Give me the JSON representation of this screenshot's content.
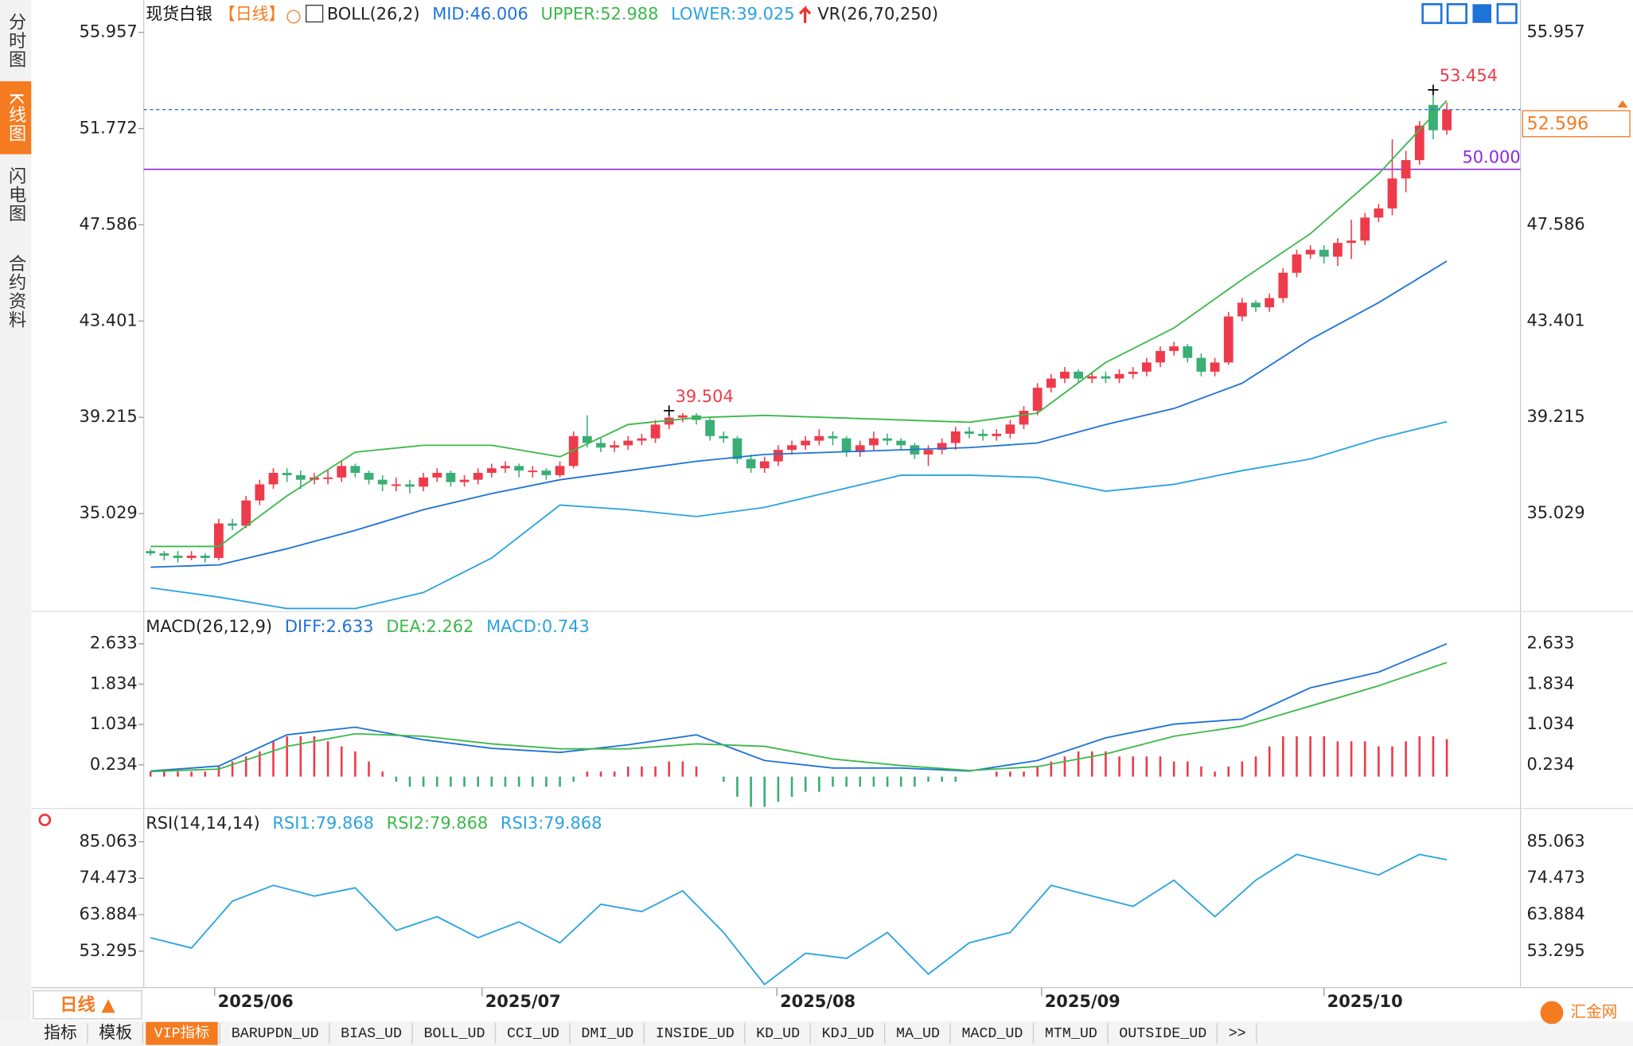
{
  "tabs": [
    "分时图",
    "K线图",
    "闪电图",
    "合约资料"
  ],
  "period_selector": "日线 ▲",
  "bottom_tabs": [
    "指标",
    "模板",
    "VIP指标",
    "BARUPDN_UD",
    "BIAS_UD",
    "BOLL_UD",
    "CCI_UD",
    "DMI_UD",
    "INSIDE_UD",
    "KD_UD",
    "KDJ_UD",
    "MA_UD",
    "MACD_UD",
    "MTM_UD",
    "OUTSIDE_UD",
    ">>"
  ],
  "logo": "汇金网",
  "chart_data": [
    {
      "type": "candlestick",
      "title": "现货白银",
      "period": "【日线】",
      "up_color": "#ee3b4b",
      "down_color": "#3aae74",
      "xlim": [
        -0.5,
        100.4
      ],
      "xticks": [
        {
          "value": 4.7,
          "label": "2025/06"
        },
        {
          "value": 24.3,
          "label": "2025/07"
        },
        {
          "value": 45.9,
          "label": "2025/08"
        },
        {
          "value": 65.3,
          "label": "2025/09"
        },
        {
          "value": 86,
          "label": "2025/10"
        }
      ],
      "ylim": [
        30.86,
        57.36
      ],
      "yticks": [
        55.957,
        51.772,
        47.586,
        43.401,
        39.215,
        35.029
      ],
      "candles": [
        [
          33.4,
          33.5,
          33.2,
          33.3
        ],
        [
          33.3,
          33.4,
          33.0,
          33.2
        ],
        [
          33.2,
          33.4,
          32.9,
          33.1
        ],
        [
          33.1,
          33.4,
          33.0,
          33.2
        ],
        [
          33.2,
          33.3,
          32.9,
          33.1
        ],
        [
          33.1,
          34.8,
          33.0,
          34.6
        ],
        [
          34.6,
          34.8,
          34.3,
          34.5
        ],
        [
          34.5,
          35.8,
          34.4,
          35.6
        ],
        [
          35.6,
          36.5,
          35.4,
          36.3
        ],
        [
          36.3,
          37.0,
          36.1,
          36.8
        ],
        [
          36.8,
          37.0,
          36.4,
          36.7
        ],
        [
          36.7,
          36.9,
          36.1,
          36.5
        ],
        [
          36.5,
          36.8,
          36.3,
          36.6
        ],
        [
          36.6,
          36.9,
          36.3,
          36.6
        ],
        [
          36.6,
          37.3,
          36.4,
          37.1
        ],
        [
          37.1,
          37.2,
          36.6,
          36.8
        ],
        [
          36.8,
          36.9,
          36.3,
          36.5
        ],
        [
          36.5,
          36.7,
          36.0,
          36.3
        ],
        [
          36.3,
          36.6,
          36.0,
          36.3
        ],
        [
          36.3,
          36.5,
          35.9,
          36.2
        ],
        [
          36.2,
          36.8,
          36.0,
          36.6
        ],
        [
          36.6,
          37.0,
          36.4,
          36.8
        ],
        [
          36.8,
          36.9,
          36.2,
          36.4
        ],
        [
          36.4,
          36.7,
          36.2,
          36.5
        ],
        [
          36.5,
          37.0,
          36.3,
          36.8
        ],
        [
          36.8,
          37.2,
          36.6,
          37.0
        ],
        [
          37.0,
          37.3,
          36.8,
          37.1
        ],
        [
          37.1,
          37.2,
          36.6,
          36.9
        ],
        [
          36.9,
          37.1,
          36.6,
          36.9
        ],
        [
          36.9,
          37.0,
          36.5,
          36.7
        ],
        [
          36.7,
          37.3,
          36.6,
          37.1
        ],
        [
          37.1,
          38.6,
          37.0,
          38.4
        ],
        [
          38.4,
          39.3,
          37.9,
          38.1
        ],
        [
          38.1,
          38.3,
          37.7,
          37.9
        ],
        [
          37.9,
          38.2,
          37.7,
          38.0
        ],
        [
          38.0,
          38.4,
          37.8,
          38.2
        ],
        [
          38.2,
          38.5,
          38.0,
          38.3
        ],
        [
          38.3,
          39.1,
          38.1,
          38.9
        ],
        [
          38.9,
          39.504,
          38.7,
          39.2
        ],
        [
          39.2,
          39.4,
          39.0,
          39.3
        ],
        [
          39.3,
          39.4,
          38.9,
          39.1
        ],
        [
          39.1,
          39.2,
          38.2,
          38.4
        ],
        [
          38.4,
          38.6,
          38.1,
          38.3
        ],
        [
          38.3,
          38.4,
          37.2,
          37.4
        ],
        [
          37.4,
          37.6,
          36.8,
          37.0
        ],
        [
          37.0,
          37.5,
          36.8,
          37.3
        ],
        [
          37.3,
          38.0,
          37.1,
          37.8
        ],
        [
          37.8,
          38.2,
          37.6,
          38.0
        ],
        [
          38.0,
          38.4,
          37.8,
          38.2
        ],
        [
          38.2,
          38.7,
          38.0,
          38.4
        ],
        [
          38.4,
          38.6,
          38.0,
          38.3
        ],
        [
          38.3,
          38.4,
          37.5,
          37.7
        ],
        [
          37.7,
          38.2,
          37.5,
          38.0
        ],
        [
          38.0,
          38.6,
          37.8,
          38.3
        ],
        [
          38.3,
          38.5,
          38.0,
          38.2
        ],
        [
          38.2,
          38.3,
          37.8,
          38.0
        ],
        [
          38.0,
          38.1,
          37.4,
          37.6
        ],
        [
          37.6,
          38.0,
          37.1,
          37.8
        ],
        [
          37.8,
          38.3,
          37.6,
          38.1
        ],
        [
          38.1,
          38.8,
          37.8,
          38.6
        ],
        [
          38.6,
          38.8,
          38.3,
          38.5
        ],
        [
          38.5,
          38.7,
          38.2,
          38.4
        ],
        [
          38.4,
          38.7,
          38.2,
          38.5
        ],
        [
          38.5,
          39.1,
          38.3,
          38.9
        ],
        [
          38.9,
          39.7,
          38.7,
          39.5
        ],
        [
          39.5,
          40.7,
          39.3,
          40.5
        ],
        [
          40.5,
          41.1,
          40.3,
          40.9
        ],
        [
          40.9,
          41.4,
          40.7,
          41.2
        ],
        [
          41.2,
          41.3,
          40.7,
          40.9
        ],
        [
          40.9,
          41.2,
          40.7,
          41.0
        ],
        [
          41.0,
          41.2,
          40.7,
          40.9
        ],
        [
          40.9,
          41.3,
          40.7,
          41.1
        ],
        [
          41.1,
          41.4,
          40.9,
          41.2
        ],
        [
          41.2,
          41.8,
          41.0,
          41.6
        ],
        [
          41.6,
          42.3,
          41.4,
          42.1
        ],
        [
          42.1,
          42.5,
          41.9,
          42.3
        ],
        [
          42.3,
          42.4,
          41.6,
          41.8
        ],
        [
          41.8,
          42.0,
          41.0,
          41.2
        ],
        [
          41.2,
          41.8,
          41.0,
          41.6
        ],
        [
          41.6,
          43.8,
          41.5,
          43.6
        ],
        [
          43.6,
          44.4,
          43.4,
          44.2
        ],
        [
          44.2,
          44.3,
          43.8,
          44.0
        ],
        [
          44.0,
          44.6,
          43.8,
          44.4
        ],
        [
          44.4,
          45.7,
          44.2,
          45.5
        ],
        [
          45.5,
          46.5,
          45.3,
          46.3
        ],
        [
          46.3,
          46.7,
          46.1,
          46.5
        ],
        [
          46.5,
          46.7,
          45.9,
          46.2
        ],
        [
          46.2,
          47.0,
          45.8,
          46.8
        ],
        [
          46.8,
          47.8,
          46.1,
          46.9
        ],
        [
          46.9,
          48.1,
          46.7,
          47.9
        ],
        [
          47.9,
          48.5,
          47.7,
          48.3
        ],
        [
          48.3,
          51.3,
          48.0,
          49.6
        ],
        [
          49.6,
          50.8,
          49.0,
          50.4
        ],
        [
          50.4,
          52.1,
          50.2,
          51.9
        ],
        [
          52.8,
          53.454,
          51.3,
          51.7
        ],
        [
          51.7,
          52.9,
          51.5,
          52.596
        ]
      ],
      "annotations": [
        {
          "x": 94,
          "value": 53.454
        },
        {
          "x": 38,
          "value": 39.504
        }
      ],
      "hline": {
        "value": 50,
        "label": "50.000",
        "color": "#8a2be2"
      },
      "last_color": "#f47b20",
      "indicators": [
        {
          "label": "BOLL(26,2)",
          "x": [
            0,
            5,
            10,
            15,
            20,
            25,
            30,
            35,
            40,
            45,
            50,
            55,
            60,
            65,
            70,
            75,
            80,
            85,
            90,
            95
          ],
          "series": [
            {
              "label": "MID:46.006",
              "color": "#1e73d8",
              "values": [
                32.7,
                32.8,
                33.5,
                34.3,
                35.2,
                35.9,
                36.5,
                36.9,
                37.3,
                37.6,
                37.7,
                37.8,
                37.9,
                38.1,
                38.9,
                39.6,
                40.7,
                42.6,
                44.2,
                46.006
              ]
            },
            {
              "label": "UPPER:52.988",
              "color": "#3cb84a",
              "values": [
                33.6,
                33.6,
                35.8,
                37.7,
                38.0,
                38.0,
                37.5,
                38.9,
                39.2,
                39.3,
                39.2,
                39.1,
                39.0,
                39.4,
                41.6,
                43.1,
                45.2,
                47.2,
                49.8,
                52.988
              ]
            },
            {
              "label": "LOWER:39.025",
              "color": "#2aa3e0",
              "values": [
                31.8,
                31.4,
                30.9,
                30.9,
                31.6,
                33.1,
                35.4,
                35.2,
                34.9,
                35.3,
                36.0,
                36.7,
                36.7,
                36.6,
                36.0,
                36.3,
                36.9,
                37.4,
                38.3,
                39.025
              ]
            }
          ]
        },
        {
          "label": "VR(26,70,250)"
        }
      ]
    },
    {
      "type": "macd",
      "title": "MACD(26,12,9)",
      "ylim": [
        -0.61,
        3.21
      ],
      "yticks": [
        2.633,
        1.834,
        1.034,
        0.234
      ],
      "x": [
        0,
        5,
        10,
        15,
        20,
        25,
        30,
        35,
        40,
        45,
        50,
        55,
        60,
        65,
        70,
        75,
        80,
        85,
        90,
        95
      ],
      "series": [
        {
          "label": "DIFF:2.633",
          "color": "#1e73d8",
          "values": [
            0.11,
            0.21,
            0.83,
            0.98,
            0.73,
            0.56,
            0.48,
            0.63,
            0.83,
            0.32,
            0.17,
            0.17,
            0.11,
            0.32,
            0.77,
            1.04,
            1.14,
            1.76,
            2.07,
            2.633
          ]
        },
        {
          "label": "DEA:2.262",
          "color": "#3cb84a",
          "values": [
            0.1,
            0.15,
            0.6,
            0.85,
            0.8,
            0.65,
            0.55,
            0.55,
            0.65,
            0.6,
            0.35,
            0.22,
            0.12,
            0.2,
            0.45,
            0.8,
            1.0,
            1.4,
            1.8,
            2.262
          ]
        },
        {
          "label": "MACD:0.743",
          "color": "#2aa3e0"
        }
      ],
      "histogram": {
        "up_color": "#ee3b4b",
        "down_color": "#3aae74",
        "values": [
          0.1,
          0.1,
          0.1,
          0.1,
          0.1,
          0.2,
          0.3,
          0.4,
          0.5,
          0.7,
          0.8,
          0.8,
          0.8,
          0.7,
          0.6,
          0.5,
          0.3,
          0.1,
          -0.1,
          -0.2,
          -0.2,
          -0.2,
          -0.2,
          -0.2,
          -0.2,
          -0.2,
          -0.2,
          -0.2,
          -0.2,
          -0.2,
          -0.2,
          -0.1,
          0.1,
          0.1,
          0.1,
          0.2,
          0.2,
          0.2,
          0.3,
          0.3,
          0.2,
          0.0,
          -0.1,
          -0.4,
          -0.6,
          -0.6,
          -0.5,
          -0.4,
          -0.3,
          -0.3,
          -0.2,
          -0.2,
          -0.2,
          -0.2,
          -0.2,
          -0.2,
          -0.2,
          -0.1,
          -0.1,
          -0.1,
          0.0,
          0.0,
          0.1,
          0.1,
          0.1,
          0.2,
          0.3,
          0.4,
          0.5,
          0.5,
          0.5,
          0.4,
          0.4,
          0.4,
          0.4,
          0.3,
          0.3,
          0.2,
          0.1,
          0.2,
          0.3,
          0.4,
          0.6,
          0.8,
          0.8,
          0.8,
          0.8,
          0.7,
          0.7,
          0.7,
          0.6,
          0.6,
          0.7,
          0.8,
          0.8,
          0.743
        ]
      }
    },
    {
      "type": "line",
      "title": "RSI(14,14,14)",
      "ylim": [
        42.7,
        94.14
      ],
      "yticks": [
        85.063,
        74.473,
        63.884,
        53.295
      ],
      "x": [
        0,
        3,
        6,
        9,
        12,
        15,
        18,
        21,
        24,
        27,
        30,
        33,
        36,
        39,
        42,
        45,
        48,
        51,
        54,
        57,
        60,
        63,
        66,
        69,
        72,
        75,
        78,
        81,
        84,
        87,
        90,
        93,
        95
      ],
      "series": [
        {
          "label": "RSI1:79.868",
          "color": "#2aa3e0",
          "values": [
            57.2,
            54.2,
            67.8,
            72.4,
            69.3,
            71.7,
            59.3,
            63.3,
            57.2,
            61.8,
            55.7,
            66.9,
            64.8,
            70.8,
            58.7,
            43.6,
            52.7,
            51.2,
            58.7,
            46.6,
            55.7,
            58.7,
            72.4,
            69.3,
            66.3,
            73.9,
            63.3,
            73.9,
            81.4,
            78.4,
            75.4,
            81.4,
            79.868
          ]
        },
        {
          "label": "RSI2:79.868",
          "color": "#3cb84a"
        },
        {
          "label": "RSI3:79.868",
          "color": "#2aa3e0"
        }
      ]
    }
  ]
}
